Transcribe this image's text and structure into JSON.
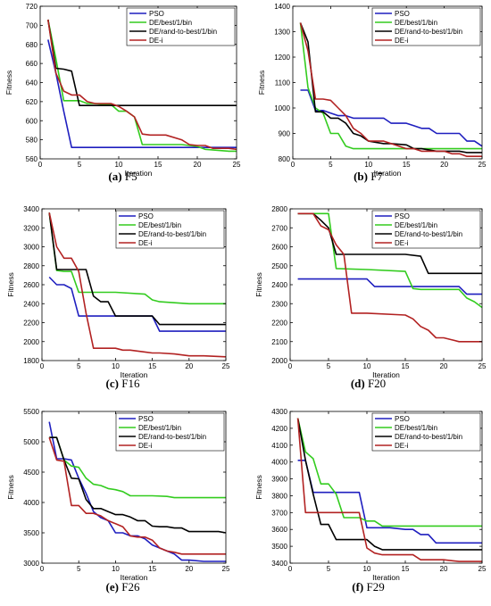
{
  "figure": {
    "series_names": [
      "PSO",
      "DE/best/1/bin",
      "DE/rand-to-best/1/bin",
      "DE-i"
    ],
    "series_colors": [
      "#1f1fbf",
      "#33cc1f",
      "#000000",
      "#b22222"
    ]
  },
  "chart_data": [
    {
      "type": "line",
      "caption_letter": "(a)",
      "caption_name": "F5",
      "xlabel": "Iteration",
      "ylabel": "Fitness",
      "xlim": [
        0,
        25
      ],
      "ylim": [
        560,
        720
      ],
      "xticks": [
        0,
        5,
        10,
        15,
        20,
        25
      ],
      "yticks": [
        560,
        580,
        600,
        620,
        640,
        660,
        680,
        700,
        720
      ],
      "legend": "top-right",
      "grid": false,
      "series": [
        {
          "name": "PSO",
          "x": [
            1,
            2,
            3,
            4,
            5,
            10,
            15,
            20,
            21,
            25
          ],
          "y": [
            685,
            650,
            610,
            572,
            572,
            572,
            572,
            572,
            572,
            572
          ]
        },
        {
          "name": "DE/best/1/bin",
          "x": [
            1,
            2,
            3,
            5,
            6,
            7,
            8,
            9,
            10,
            11,
            12,
            13,
            14,
            15,
            17,
            18,
            19,
            20,
            21,
            24,
            25
          ],
          "y": [
            706,
            665,
            621,
            621,
            618,
            618,
            617,
            617,
            610,
            610,
            604,
            575,
            575,
            575,
            575,
            575,
            574,
            573,
            570,
            568,
            568
          ]
        },
        {
          "name": "DE/rand-to-best/1/bin",
          "x": [
            1,
            2,
            3,
            4,
            5,
            25
          ],
          "y": [
            706,
            655,
            654,
            652,
            616,
            616
          ]
        },
        {
          "name": "DE-i",
          "x": [
            1,
            2,
            3,
            4,
            5,
            6,
            7,
            8,
            9,
            10,
            11,
            12,
            13,
            14,
            16,
            18,
            19,
            20,
            21,
            22,
            24,
            25
          ],
          "y": [
            706,
            650,
            631,
            627,
            627,
            620,
            618,
            618,
            618,
            615,
            610,
            604,
            586,
            585,
            585,
            580,
            575,
            574,
            574,
            571,
            571,
            570
          ]
        }
      ]
    },
    {
      "type": "line",
      "caption_letter": "(b)",
      "caption_name": "F7",
      "xlabel": "Iteration",
      "ylabel": "Fitness",
      "xlim": [
        0,
        25
      ],
      "ylim": [
        800,
        1400
      ],
      "xticks": [
        0,
        5,
        10,
        15,
        20,
        25
      ],
      "yticks": [
        800,
        900,
        1000,
        1100,
        1200,
        1300,
        1400
      ],
      "legend": "top-right",
      "grid": false,
      "series": [
        {
          "name": "PSO",
          "x": [
            1,
            2,
            3,
            4,
            5,
            6,
            7,
            8,
            10,
            12,
            13,
            15,
            16,
            17,
            18,
            19,
            20,
            22,
            23,
            24,
            25
          ],
          "y": [
            1070,
            1070,
            990,
            990,
            980,
            970,
            970,
            960,
            960,
            960,
            940,
            940,
            930,
            920,
            920,
            900,
            900,
            900,
            870,
            870,
            850
          ]
        },
        {
          "name": "DE/best/1/bin",
          "x": [
            1,
            2,
            3,
            4,
            5,
            6,
            7,
            8,
            10,
            20,
            25
          ],
          "y": [
            1335,
            1080,
            1000,
            980,
            900,
            900,
            850,
            840,
            840,
            840,
            840
          ]
        },
        {
          "name": "DE/rand-to-best/1/bin",
          "x": [
            1,
            2,
            3,
            4,
            5,
            6,
            7,
            8,
            9,
            10,
            12,
            13,
            15,
            16,
            17,
            19,
            20,
            21,
            22,
            23,
            25
          ],
          "y": [
            1335,
            1260,
            985,
            985,
            960,
            960,
            940,
            900,
            890,
            870,
            860,
            860,
            855,
            840,
            840,
            830,
            830,
            830,
            830,
            825,
            825
          ]
        },
        {
          "name": "DE-i",
          "x": [
            1,
            2,
            3,
            4,
            5,
            6,
            7,
            8,
            9,
            10,
            12,
            13,
            15,
            16,
            17,
            20,
            21,
            22,
            23,
            25
          ],
          "y": [
            1335,
            1225,
            1035,
            1035,
            1030,
            1000,
            970,
            920,
            900,
            870,
            870,
            860,
            840,
            840,
            830,
            830,
            820,
            820,
            810,
            810
          ]
        }
      ]
    },
    {
      "type": "line",
      "caption_letter": "(c)",
      "caption_name": "F16",
      "xlabel": "Iteration",
      "ylabel": "Fitness",
      "xlim": [
        0,
        25
      ],
      "ylim": [
        1800,
        3400
      ],
      "xticks": [
        0,
        5,
        10,
        15,
        20,
        25
      ],
      "yticks": [
        1800,
        2000,
        2200,
        2400,
        2600,
        2800,
        3000,
        3200,
        3400
      ],
      "legend": "top-right",
      "grid": false,
      "series": [
        {
          "name": "PSO",
          "x": [
            1,
            2,
            3,
            4,
            5,
            10,
            15,
            16,
            20,
            25
          ],
          "y": [
            2680,
            2600,
            2600,
            2560,
            2270,
            2270,
            2270,
            2110,
            2110,
            2110
          ]
        },
        {
          "name": "DE/best/1/bin",
          "x": [
            1,
            2,
            3,
            4,
            5,
            6,
            10,
            14,
            15,
            16,
            20,
            25
          ],
          "y": [
            3360,
            2750,
            2740,
            2740,
            2520,
            2520,
            2520,
            2500,
            2440,
            2420,
            2400,
            2400
          ]
        },
        {
          "name": "DE/rand-to-best/1/bin",
          "x": [
            1,
            2,
            3,
            4,
            5,
            6,
            7,
            8,
            9,
            10,
            15,
            16,
            20,
            25
          ],
          "y": [
            3360,
            2760,
            2760,
            2760,
            2760,
            2760,
            2480,
            2420,
            2420,
            2270,
            2270,
            2180,
            2180,
            2180
          ]
        },
        {
          "name": "DE-i",
          "x": [
            1,
            2,
            3,
            4,
            5,
            6,
            7,
            8,
            9,
            10,
            11,
            12,
            14,
            15,
            16,
            18,
            20,
            22,
            25
          ],
          "y": [
            3360,
            3000,
            2880,
            2880,
            2740,
            2300,
            1930,
            1930,
            1930,
            1930,
            1910,
            1910,
            1890,
            1880,
            1880,
            1870,
            1850,
            1850,
            1840
          ]
        }
      ]
    },
    {
      "type": "line",
      "caption_letter": "(d)",
      "caption_name": "F20",
      "xlabel": "Iteration",
      "ylabel": "Fitness",
      "xlim": [
        0,
        25
      ],
      "ylim": [
        2000,
        2800
      ],
      "xticks": [
        0,
        5,
        10,
        15,
        20,
        25
      ],
      "yticks": [
        2000,
        2100,
        2200,
        2300,
        2400,
        2500,
        2600,
        2700,
        2800
      ],
      "legend": "top-right",
      "grid": false,
      "series": [
        {
          "name": "PSO",
          "x": [
            1,
            5,
            10,
            11,
            15,
            20,
            22,
            23,
            25
          ],
          "y": [
            2430,
            2430,
            2430,
            2390,
            2390,
            2390,
            2390,
            2350,
            2350
          ]
        },
        {
          "name": "DE/best/1/bin",
          "x": [
            1,
            5,
            6,
            10,
            15,
            16,
            17,
            20,
            22,
            23,
            24,
            25
          ],
          "y": [
            2775,
            2775,
            2485,
            2480,
            2470,
            2380,
            2375,
            2375,
            2375,
            2330,
            2310,
            2280
          ]
        },
        {
          "name": "DE/rand-to-best/1/bin",
          "x": [
            1,
            3,
            4,
            5,
            6,
            10,
            15,
            17,
            18,
            20,
            25
          ],
          "y": [
            2775,
            2775,
            2740,
            2700,
            2560,
            2560,
            2560,
            2550,
            2460,
            2460,
            2460
          ]
        },
        {
          "name": "DE-i",
          "x": [
            1,
            3,
            4,
            5,
            6,
            7,
            8,
            10,
            15,
            16,
            17,
            18,
            19,
            20,
            21,
            22,
            25
          ],
          "y": [
            2775,
            2775,
            2710,
            2690,
            2610,
            2560,
            2250,
            2250,
            2240,
            2220,
            2180,
            2160,
            2120,
            2120,
            2110,
            2100,
            2100
          ]
        }
      ]
    },
    {
      "type": "line",
      "caption_letter": "(e)",
      "caption_name": "F26",
      "xlabel": "Iteration",
      "ylabel": "Fitness",
      "xlim": [
        0,
        25
      ],
      "ylim": [
        3000,
        5500
      ],
      "xticks": [
        0,
        5,
        10,
        15,
        20,
        25
      ],
      "yticks": [
        3000,
        3500,
        4000,
        4500,
        5000,
        5500
      ],
      "legend": "top-right",
      "grid": false,
      "series": [
        {
          "name": "PSO",
          "x": [
            1,
            2,
            3,
            4,
            5,
            6,
            7,
            8,
            9,
            10,
            11,
            12,
            13,
            14,
            15,
            16,
            17,
            18,
            19,
            20,
            22,
            25
          ],
          "y": [
            5330,
            4720,
            4720,
            4700,
            4400,
            4150,
            3850,
            3750,
            3700,
            3500,
            3500,
            3450,
            3450,
            3400,
            3300,
            3250,
            3200,
            3150,
            3050,
            3050,
            3030,
            3030
          ]
        },
        {
          "name": "DE/best/1/bin",
          "x": [
            1,
            2,
            3,
            4,
            5,
            6,
            7,
            8,
            9,
            10,
            11,
            12,
            13,
            15,
            17,
            18,
            20,
            25
          ],
          "y": [
            5070,
            5070,
            4700,
            4600,
            4580,
            4400,
            4300,
            4280,
            4230,
            4210,
            4180,
            4110,
            4110,
            4110,
            4100,
            4080,
            4080,
            4080
          ]
        },
        {
          "name": "DE/rand-to-best/1/bin",
          "x": [
            1,
            2,
            3,
            4,
            5,
            6,
            7,
            8,
            9,
            10,
            11,
            12,
            13,
            14,
            15,
            16,
            17,
            18,
            19,
            20,
            22,
            24,
            25
          ],
          "y": [
            5070,
            5070,
            4700,
            4400,
            4390,
            4050,
            3900,
            3900,
            3850,
            3800,
            3800,
            3760,
            3700,
            3700,
            3610,
            3600,
            3600,
            3580,
            3580,
            3520,
            3520,
            3520,
            3500
          ]
        },
        {
          "name": "DE-i",
          "x": [
            1,
            2,
            3,
            4,
            5,
            6,
            7,
            8,
            9,
            10,
            11,
            12,
            13,
            14,
            15,
            16,
            17,
            18,
            19,
            20,
            22,
            25
          ],
          "y": [
            5070,
            4700,
            4680,
            3950,
            3950,
            3820,
            3820,
            3780,
            3700,
            3650,
            3600,
            3450,
            3430,
            3430,
            3380,
            3250,
            3200,
            3180,
            3150,
            3150,
            3150,
            3150
          ]
        }
      ]
    },
    {
      "type": "line",
      "caption_letter": "(f)",
      "caption_name": "F29",
      "xlabel": "Iteration",
      "ylabel": "Fitness",
      "xlim": [
        0,
        25
      ],
      "ylim": [
        3400,
        4300
      ],
      "xticks": [
        0,
        5,
        10,
        15,
        20,
        25
      ],
      "yticks": [
        3400,
        3500,
        3600,
        3700,
        3800,
        3900,
        4000,
        4100,
        4200,
        4300
      ],
      "legend": "top-right",
      "grid": false,
      "series": [
        {
          "name": "PSO",
          "x": [
            1,
            2,
            3,
            5,
            8,
            9,
            10,
            12,
            13,
            15,
            16,
            17,
            18,
            19,
            20,
            25
          ],
          "y": [
            4010,
            4010,
            3820,
            3820,
            3820,
            3820,
            3610,
            3610,
            3610,
            3600,
            3600,
            3570,
            3570,
            3520,
            3520,
            3520
          ]
        },
        {
          "name": "DE/best/1/bin",
          "x": [
            1,
            2,
            3,
            4,
            5,
            6,
            7,
            8,
            9,
            10,
            11,
            12,
            15,
            20,
            25
          ],
          "y": [
            4260,
            4060,
            4020,
            3870,
            3870,
            3810,
            3670,
            3670,
            3670,
            3650,
            3650,
            3620,
            3620,
            3620,
            3620
          ]
        },
        {
          "name": "DE/rand-to-best/1/bin",
          "x": [
            1,
            2,
            3,
            4,
            5,
            6,
            7,
            8,
            9,
            10,
            11,
            12,
            15,
            20,
            25
          ],
          "y": [
            4260,
            4010,
            3810,
            3630,
            3630,
            3540,
            3540,
            3540,
            3540,
            3540,
            3500,
            3480,
            3480,
            3480,
            3480
          ]
        },
        {
          "name": "DE-i",
          "x": [
            1,
            2,
            3,
            5,
            8,
            9,
            10,
            11,
            12,
            15,
            16,
            17,
            20,
            22,
            25
          ],
          "y": [
            4260,
            3700,
            3700,
            3700,
            3700,
            3700,
            3490,
            3460,
            3450,
            3450,
            3450,
            3420,
            3420,
            3410,
            3410
          ]
        }
      ]
    }
  ]
}
